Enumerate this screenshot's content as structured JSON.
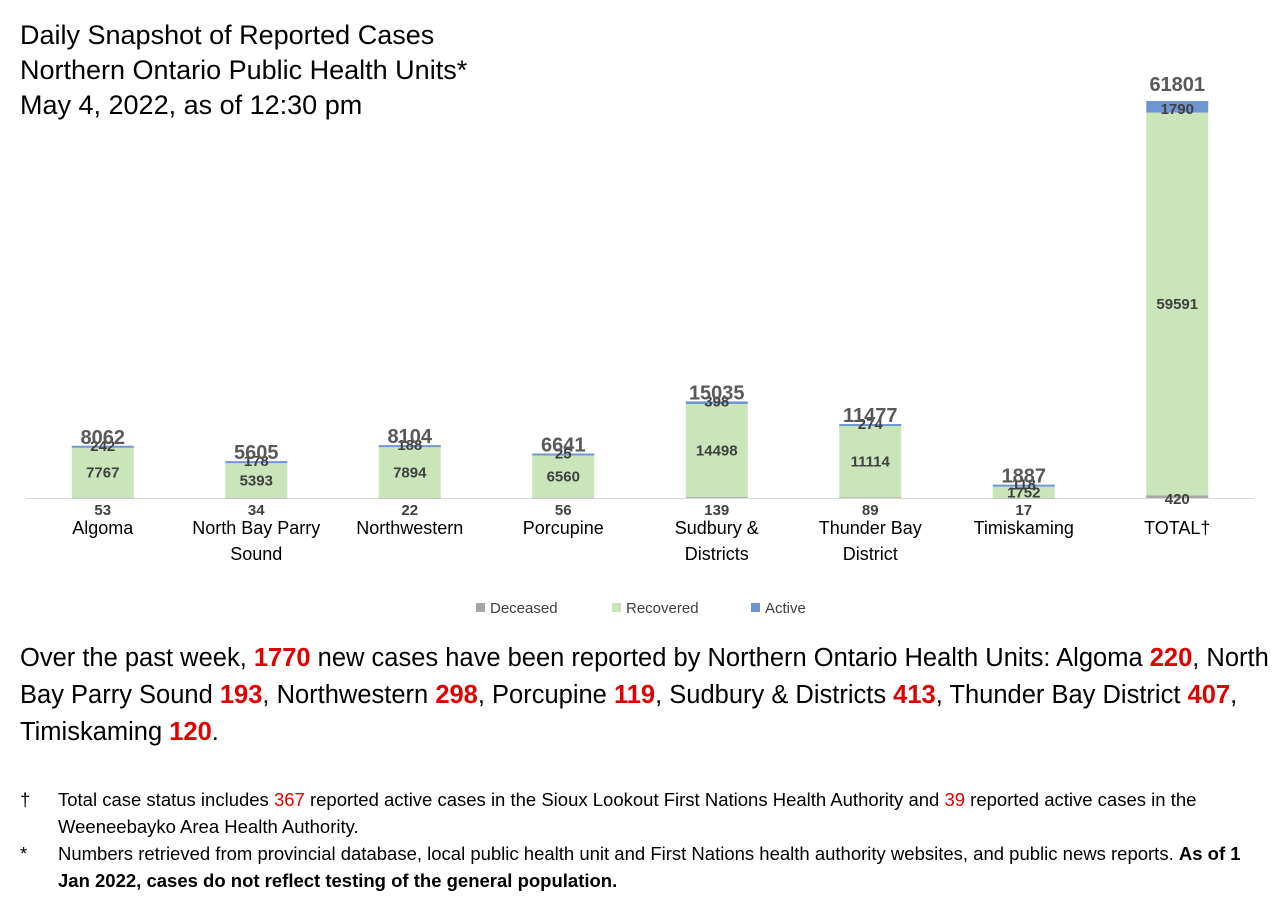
{
  "title": {
    "line1": "Daily Snapshot of Reported Cases",
    "line2": "Northern Ontario Public Health Units*",
    "line3": "May 4, 2022, as of 12:30 pm"
  },
  "colors": {
    "deceased": "#a5a5a5",
    "recovered": "#c9e5b9",
    "active": "#6f95d4",
    "highlight": "#e00000"
  },
  "chart_data": {
    "type": "bar",
    "stacked": true,
    "categories": [
      "Algoma",
      "North Bay Parry Sound",
      "Northwestern",
      "Porcupine",
      "Sudbury & Districts",
      "Thunder Bay District",
      "Timiskaming",
      "TOTAL†"
    ],
    "category_lines": [
      [
        "Algoma"
      ],
      [
        "North Bay Parry",
        "Sound"
      ],
      [
        "Northwestern"
      ],
      [
        "Porcupine"
      ],
      [
        "Sudbury &",
        "Districts"
      ],
      [
        "Thunder Bay",
        "District"
      ],
      [
        "Timiskaming"
      ],
      [
        "TOTAL†"
      ]
    ],
    "series": [
      {
        "name": "Deceased",
        "values": [
          53,
          34,
          22,
          56,
          139,
          89,
          17,
          420
        ]
      },
      {
        "name": "Recovered",
        "values": [
          7767,
          5393,
          7894,
          6560,
          14498,
          11114,
          1752,
          59591
        ]
      },
      {
        "name": "Active",
        "values": [
          242,
          178,
          188,
          25,
          398,
          274,
          118,
          1790
        ]
      }
    ],
    "totals": [
      8062,
      5605,
      8104,
      6641,
      15035,
      11477,
      1887,
      61801
    ],
    "ylim": [
      0,
      61801
    ],
    "grid": false,
    "legend": "bottom"
  },
  "summary": {
    "p1": "Over the past week, ",
    "total_new": "1770",
    "p2": " new cases have been reported by Northern Ontario Health Units: Algoma ",
    "algoma": "220",
    "p3": ", North Bay Parry Sound ",
    "nbps": "193",
    "p4": ", Northwestern ",
    "northwestern": "298",
    "p5": ", Porcupine ",
    "porcupine": "119",
    "p6": ", Sudbury & Districts ",
    "sudbury": "413",
    "p7": ", Thunder Bay District ",
    "thunder": "407",
    "p8": ", Timiskaming ",
    "timiskaming": "120",
    "p9": "."
  },
  "footnotes": {
    "dagger_mark": "†",
    "dagger_p1": "Total case status includes ",
    "sioux_count": "367",
    "dagger_p2": " reported active cases in the Sioux Lookout First Nations Health Authority and ",
    "weeneebayko_count": "39",
    "dagger_p3": " reported active cases in the Weeneebayko Area Health Authority.",
    "star_mark": "*",
    "star_p1": "Numbers retrieved from provincial database, local public health unit and First Nations health authority websites, and public news reports. ",
    "star_bold": "As of 1 Jan 2022, cases do not reflect testing of the general population."
  }
}
